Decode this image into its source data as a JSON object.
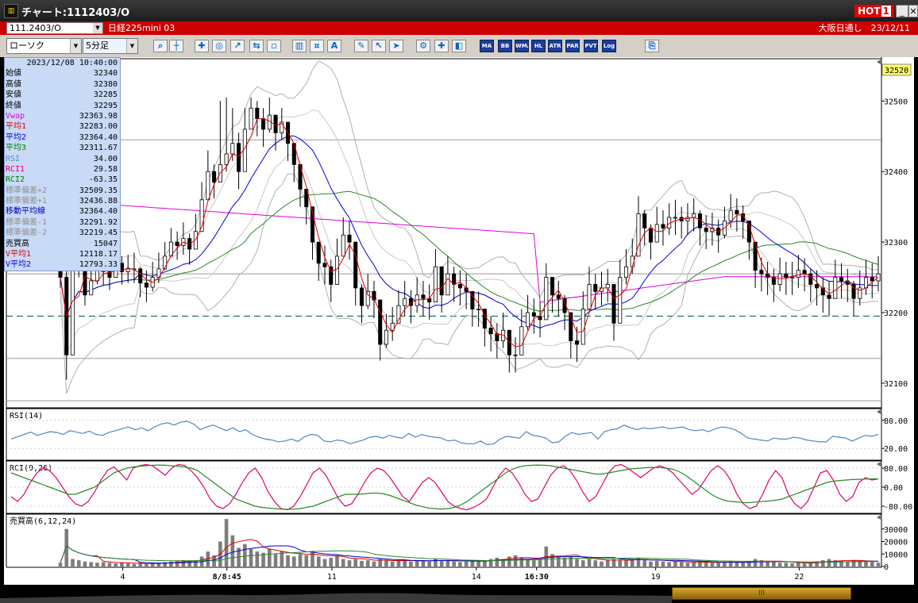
{
  "window": {
    "title": "チャート:1112403/O",
    "app_icon": "chart-app-icon",
    "hot_label": "HOT",
    "hot_num": "1",
    "minimize": "_",
    "close": "✕"
  },
  "info": {
    "code": "111.2403/O",
    "name": "日経225mini 03",
    "right": "大阪日通し　23/12/11"
  },
  "toolbar": {
    "chart_type": "ローソク",
    "interval": "5分足",
    "study_labels": [
      "MA",
      "BB",
      "WMA",
      "HL",
      "ATR",
      "PAR",
      "PVT",
      "Log"
    ]
  },
  "ohlc": {
    "datetime": "2023/12/08 10:40:00",
    "rows": [
      {
        "label": "始値",
        "value": "32340",
        "color": "#000000"
      },
      {
        "label": "高値",
        "value": "32380",
        "color": "#000000"
      },
      {
        "label": "安値",
        "value": "32285",
        "color": "#000000"
      },
      {
        "label": "終値",
        "value": "32295",
        "color": "#000000"
      },
      {
        "label": "Vwap",
        "value": "32363.98",
        "color": "#e000e0"
      },
      {
        "label": "平均1",
        "value": "32283.00",
        "color": "#e00000"
      },
      {
        "label": "平均2",
        "value": "32364.40",
        "color": "#0000e0"
      },
      {
        "label": "平均3",
        "value": "32311.67",
        "color": "#008000"
      },
      {
        "label": "RSI",
        "value": "34.00",
        "color": "#5b8bd0"
      },
      {
        "label": "RCI1",
        "value": "29.58",
        "color": "#e0006a"
      },
      {
        "label": "RCI2",
        "value": "-63.35",
        "color": "#008000"
      },
      {
        "label": "標準偏差+2",
        "value": "32509.35",
        "color": "#909090"
      },
      {
        "label": "標準偏差+1",
        "value": "32436.88",
        "color": "#909090"
      },
      {
        "label": "移動平均線",
        "value": "32364.40",
        "color": "#0000b0"
      },
      {
        "label": "標準偏差-1",
        "value": "32291.92",
        "color": "#909090"
      },
      {
        "label": "標準偏差-2",
        "value": "32219.45",
        "color": "#909090"
      },
      {
        "label": "売買高",
        "value": "15047",
        "color": "#000000"
      },
      {
        "label": "V平均1",
        "value": "12118.17",
        "color": "#e00000"
      },
      {
        "label": "V平均2",
        "value": "12793.33",
        "color": "#0000e0"
      }
    ]
  },
  "chart_data": [
    {
      "type": "candlestick",
      "current_price_label": "32520",
      "y_ticks": [
        "32500",
        "32400",
        "32300",
        "32200",
        "32100"
      ],
      "y_tick_values": [
        32500,
        32400,
        32300,
        32200,
        32100
      ],
      "ylim": [
        32065,
        32560
      ],
      "x_ticks": [
        "4",
        "8/8:45",
        "11",
        "14",
        "16:30",
        "19",
        "22"
      ],
      "x_tick_frac": [
        0.133,
        0.252,
        0.372,
        0.537,
        0.606,
        0.742,
        0.906
      ],
      "highlighted_x_ticks": [
        "8/8:45",
        "16:30"
      ],
      "reference_lines": [
        32445,
        32255,
        32135,
        32075
      ],
      "dashed_line": 32195,
      "closes": [
        32250,
        32140,
        32260,
        32270,
        32225,
        32245,
        32262,
        32258,
        32250,
        32270,
        32258,
        32262,
        32262,
        32242,
        32236,
        32250,
        32262,
        32280,
        32300,
        32295,
        32305,
        32290,
        32315,
        32360,
        32400,
        32385,
        32410,
        32425,
        32440,
        32400,
        32460,
        32490,
        32475,
        32460,
        32480,
        32455,
        32470,
        32440,
        32410,
        32375,
        32350,
        32300,
        32270,
        32265,
        32240,
        32280,
        32310,
        32300,
        32235,
        32210,
        32230,
        32218,
        32155,
        32175,
        32185,
        32210,
        32220,
        32210,
        32225,
        32220,
        32215,
        32265,
        32225,
        32255,
        32240,
        32235,
        32230,
        32205,
        32205,
        32178,
        32170,
        32160,
        32175,
        32140,
        32140,
        32180,
        32200,
        32195,
        32190,
        32250,
        32225,
        32220,
        32200,
        32160,
        32155,
        32205,
        32240,
        32230,
        32235,
        32240,
        32185,
        32250,
        32265,
        32280,
        32340,
        32320,
        32300,
        32325,
        32320,
        32335,
        32335,
        32330,
        32335,
        32340,
        32320,
        32315,
        32320,
        32310,
        32330,
        32345,
        32340,
        32330,
        32300,
        32260,
        32255,
        32250,
        32240,
        32255,
        32250,
        32250,
        32260,
        32255,
        32240,
        32235,
        32225,
        32220,
        32250,
        32245,
        32240,
        32220,
        32235,
        32250,
        32245,
        32255
      ],
      "highs": [
        32270,
        32270,
        32285,
        32290,
        32290,
        32280,
        32285,
        32278,
        32272,
        32290,
        32280,
        32282,
        32285,
        32265,
        32260,
        32272,
        32285,
        32300,
        32320,
        32315,
        32328,
        32312,
        32340,
        32385,
        32430,
        32410,
        32500,
        32505,
        32490,
        32455,
        32490,
        32505,
        32500,
        32490,
        32505,
        32480,
        32490,
        32470,
        32435,
        32400,
        32375,
        32330,
        32300,
        32295,
        32275,
        32305,
        32335,
        32330,
        32260,
        32240,
        32255,
        32245,
        32180,
        32198,
        32208,
        32232,
        32245,
        32232,
        32250,
        32245,
        32240,
        32290,
        32250,
        32280,
        32265,
        32260,
        32255,
        32230,
        32230,
        32200,
        32195,
        32185,
        32200,
        32165,
        32165,
        32205,
        32225,
        32220,
        32215,
        32270,
        32250,
        32245,
        32225,
        32185,
        32180,
        32230,
        32265,
        32255,
        32258,
        32262,
        32210,
        32275,
        32290,
        32305,
        32365,
        32345,
        32325,
        32350,
        32345,
        32355,
        32360,
        32350,
        32355,
        32362,
        32345,
        32338,
        32342,
        32332,
        32350,
        32368,
        32362,
        32352,
        32322,
        32282,
        32278,
        32272,
        32262,
        32278,
        32272,
        32272,
        32282,
        32277,
        32262,
        32260,
        32250,
        32245,
        32275,
        32270,
        32262,
        32245,
        32260,
        32275,
        32270,
        32280
      ],
      "lows": [
        32235,
        32105,
        32240,
        32250,
        32210,
        32225,
        32240,
        32238,
        32232,
        32250,
        32240,
        32242,
        32242,
        32222,
        32215,
        32230,
        32242,
        32260,
        32280,
        32275,
        32282,
        32268,
        32292,
        32338,
        32378,
        32362,
        32385,
        32400,
        32415,
        32375,
        32435,
        32465,
        32450,
        32435,
        32455,
        32430,
        32445,
        32415,
        32385,
        32350,
        32325,
        32275,
        32245,
        32240,
        32215,
        32255,
        32285,
        32275,
        32210,
        32185,
        32205,
        32192,
        32132,
        32150,
        32160,
        32185,
        32195,
        32185,
        32200,
        32195,
        32190,
        32240,
        32200,
        32230,
        32215,
        32210,
        32205,
        32180,
        32180,
        32152,
        32145,
        32135,
        32150,
        32115,
        32115,
        32155,
        32175,
        32170,
        32165,
        32225,
        32200,
        32195,
        32175,
        32135,
        32130,
        32180,
        32215,
        32205,
        32210,
        32215,
        32160,
        32225,
        32240,
        32255,
        32315,
        32295,
        32275,
        32300,
        32295,
        32310,
        32310,
        32305,
        32310,
        32315,
        32295,
        32290,
        32295,
        32285,
        32305,
        32320,
        32315,
        32305,
        32275,
        32235,
        32230,
        32225,
        32215,
        32230,
        32225,
        32225,
        32235,
        32230,
        32215,
        32210,
        32200,
        32195,
        32225,
        32220,
        32215,
        32195,
        32210,
        32225,
        32220,
        32230
      ]
    },
    {
      "type": "line",
      "title": "RSI(14)",
      "y_ticks": [
        "80.00",
        "20.00"
      ],
      "y_tick_values": [
        80,
        20
      ],
      "ylim": [
        0,
        100
      ],
      "series": [
        {
          "name": "RSI",
          "color": "#4f86c6",
          "values": [
            40,
            45,
            50,
            55,
            48,
            52,
            56,
            54,
            50,
            58,
            55,
            52,
            57,
            50,
            48,
            54,
            58,
            62,
            66,
            60,
            64,
            58,
            66,
            72,
            75,
            70,
            76,
            78,
            72,
            60,
            66,
            70,
            64,
            58,
            64,
            56,
            60,
            50,
            44,
            40,
            38,
            34,
            36,
            40,
            35,
            45,
            50,
            48,
            36,
            34,
            38,
            36,
            30,
            34,
            38,
            44,
            46,
            42,
            48,
            44,
            42,
            52,
            44,
            50,
            46,
            44,
            42,
            36,
            38,
            32,
            30,
            30,
            36,
            28,
            30,
            40,
            46,
            44,
            42,
            56,
            48,
            46,
            42,
            32,
            34,
            46,
            54,
            50,
            52,
            54,
            40,
            56,
            60,
            62,
            70,
            64,
            60,
            64,
            62,
            64,
            66,
            62,
            64,
            66,
            60,
            58,
            60,
            56,
            62,
            66,
            64,
            60,
            52,
            42,
            40,
            38,
            36,
            42,
            40,
            40,
            44,
            42,
            38,
            36,
            34,
            34,
            46,
            44,
            42,
            36,
            42,
            48,
            46,
            50
          ]
        }
      ]
    },
    {
      "type": "line",
      "title": "RCI(9,26)",
      "y_ticks": [
        "80.00",
        "0.00",
        "-80.00"
      ],
      "y_tick_values": [
        80,
        0,
        -80
      ],
      "ylim": [
        -100,
        100
      ],
      "series": [
        {
          "name": "RCI1",
          "color": "#e0006a",
          "values": [
            -40,
            -60,
            -30,
            20,
            60,
            80,
            70,
            40,
            0,
            -40,
            -70,
            -80,
            -60,
            -20,
            30,
            70,
            85,
            60,
            30,
            80,
            90,
            95,
            90,
            70,
            50,
            80,
            95,
            92,
            70,
            40,
            0,
            -50,
            -80,
            -90,
            -70,
            -30,
            20,
            60,
            80,
            40,
            -20,
            -60,
            -90,
            -95,
            -80,
            -40,
            10,
            60,
            80,
            50,
            0,
            -50,
            -80,
            -70,
            -30,
            20,
            60,
            80,
            70,
            40,
            0,
            -40,
            -60,
            -20,
            20,
            40,
            20,
            -20,
            -60,
            -80,
            -90,
            -95,
            -85,
            -70,
            -50,
            0,
            50,
            80,
            60,
            20,
            -30,
            -60,
            -50,
            0,
            50,
            80,
            90,
            70,
            30,
            -20,
            -60,
            -40,
            10,
            60,
            90,
            95,
            80,
            60,
            40,
            60,
            80,
            90,
            80,
            60,
            30,
            0,
            -30,
            -10,
            30,
            70,
            90,
            70,
            30,
            -30,
            -70,
            -90,
            -80,
            -30,
            30,
            70,
            40,
            -30,
            -70,
            -90,
            -60,
            0,
            60,
            70,
            30,
            -30,
            -60,
            -40,
            20,
            40,
            30,
            35
          ]
        },
        {
          "name": "RCI2",
          "color": "#2b8a2b",
          "values": [
            60,
            50,
            40,
            30,
            20,
            10,
            0,
            -10,
            -20,
            -30,
            -30,
            -20,
            -10,
            0,
            20,
            40,
            60,
            70,
            80,
            85,
            88,
            90,
            92,
            93,
            92,
            90,
            88,
            85,
            80,
            70,
            50,
            30,
            10,
            -10,
            -30,
            -50,
            -60,
            -70,
            -80,
            -85,
            -88,
            -90,
            -92,
            -93,
            -92,
            -90,
            -85,
            -80,
            -70,
            -60,
            -50,
            -40,
            -30,
            -30,
            -30,
            -28,
            -25,
            -25,
            -28,
            -35,
            -45,
            -55,
            -65,
            -75,
            -82,
            -88,
            -90,
            -92,
            -90,
            -85,
            -75,
            -60,
            -40,
            -20,
            0,
            20,
            40,
            60,
            75,
            85,
            90,
            92,
            93,
            92,
            90,
            85,
            80,
            75,
            70,
            65,
            60,
            55,
            55,
            60,
            65,
            70,
            75,
            78,
            80,
            82,
            83,
            82,
            80,
            75,
            65,
            50,
            30,
            10,
            -10,
            -30,
            -45,
            -55,
            -60,
            -62,
            -65,
            -65,
            -62,
            -60,
            -58,
            -55,
            -50,
            -40,
            -30,
            -20,
            -10,
            0,
            10,
            20,
            25,
            28,
            30,
            32,
            33,
            34,
            35,
            35
          ]
        }
      ]
    },
    {
      "type": "bar",
      "title": "売買高(6,12,24)",
      "y_ticks": [
        "30000",
        "20000",
        "10000",
        "0"
      ],
      "y_tick_values": [
        30000,
        20000,
        10000,
        0
      ],
      "ylim": [
        0,
        40000
      ],
      "values": [
        3000,
        30000,
        6000,
        5000,
        4000,
        3500,
        3000,
        3500,
        3000,
        2500,
        3000,
        2500,
        2000,
        2500,
        2000,
        2500,
        3000,
        3500,
        4000,
        4500,
        5000,
        4500,
        5000,
        8000,
        12000,
        9000,
        20000,
        38000,
        25000,
        15000,
        18000,
        14000,
        12000,
        11000,
        14000,
        10000,
        12000,
        9000,
        8000,
        10000,
        9000,
        12000,
        8000,
        6000,
        7000,
        9000,
        6000,
        5000,
        6000,
        4500,
        5000,
        4000,
        6000,
        5000,
        4000,
        5000,
        4500,
        4000,
        5000,
        4500,
        4000,
        6000,
        5000,
        4500,
        4000,
        3500,
        4000,
        5000,
        4500,
        5000,
        6000,
        7000,
        6000,
        8000,
        9000,
        7000,
        6000,
        5000,
        5000,
        16000,
        10000,
        8000,
        7000,
        8000,
        6000,
        5000,
        6000,
        5000,
        4000,
        5000,
        6000,
        5000,
        5000,
        6000,
        7000,
        5000,
        4000,
        4500,
        4000,
        3500,
        4000,
        3500,
        3000,
        3500,
        4000,
        3500,
        3000,
        3000,
        3500,
        4000,
        3500,
        3000,
        4000,
        6000,
        5000,
        4000,
        3500,
        3000,
        3000,
        2500,
        3000,
        2500,
        3000,
        4000,
        5000,
        6000,
        5000,
        4500,
        4000,
        5000,
        4500,
        4000,
        3500,
        3000
      ]
    }
  ],
  "scroll": {
    "grip": "III"
  }
}
